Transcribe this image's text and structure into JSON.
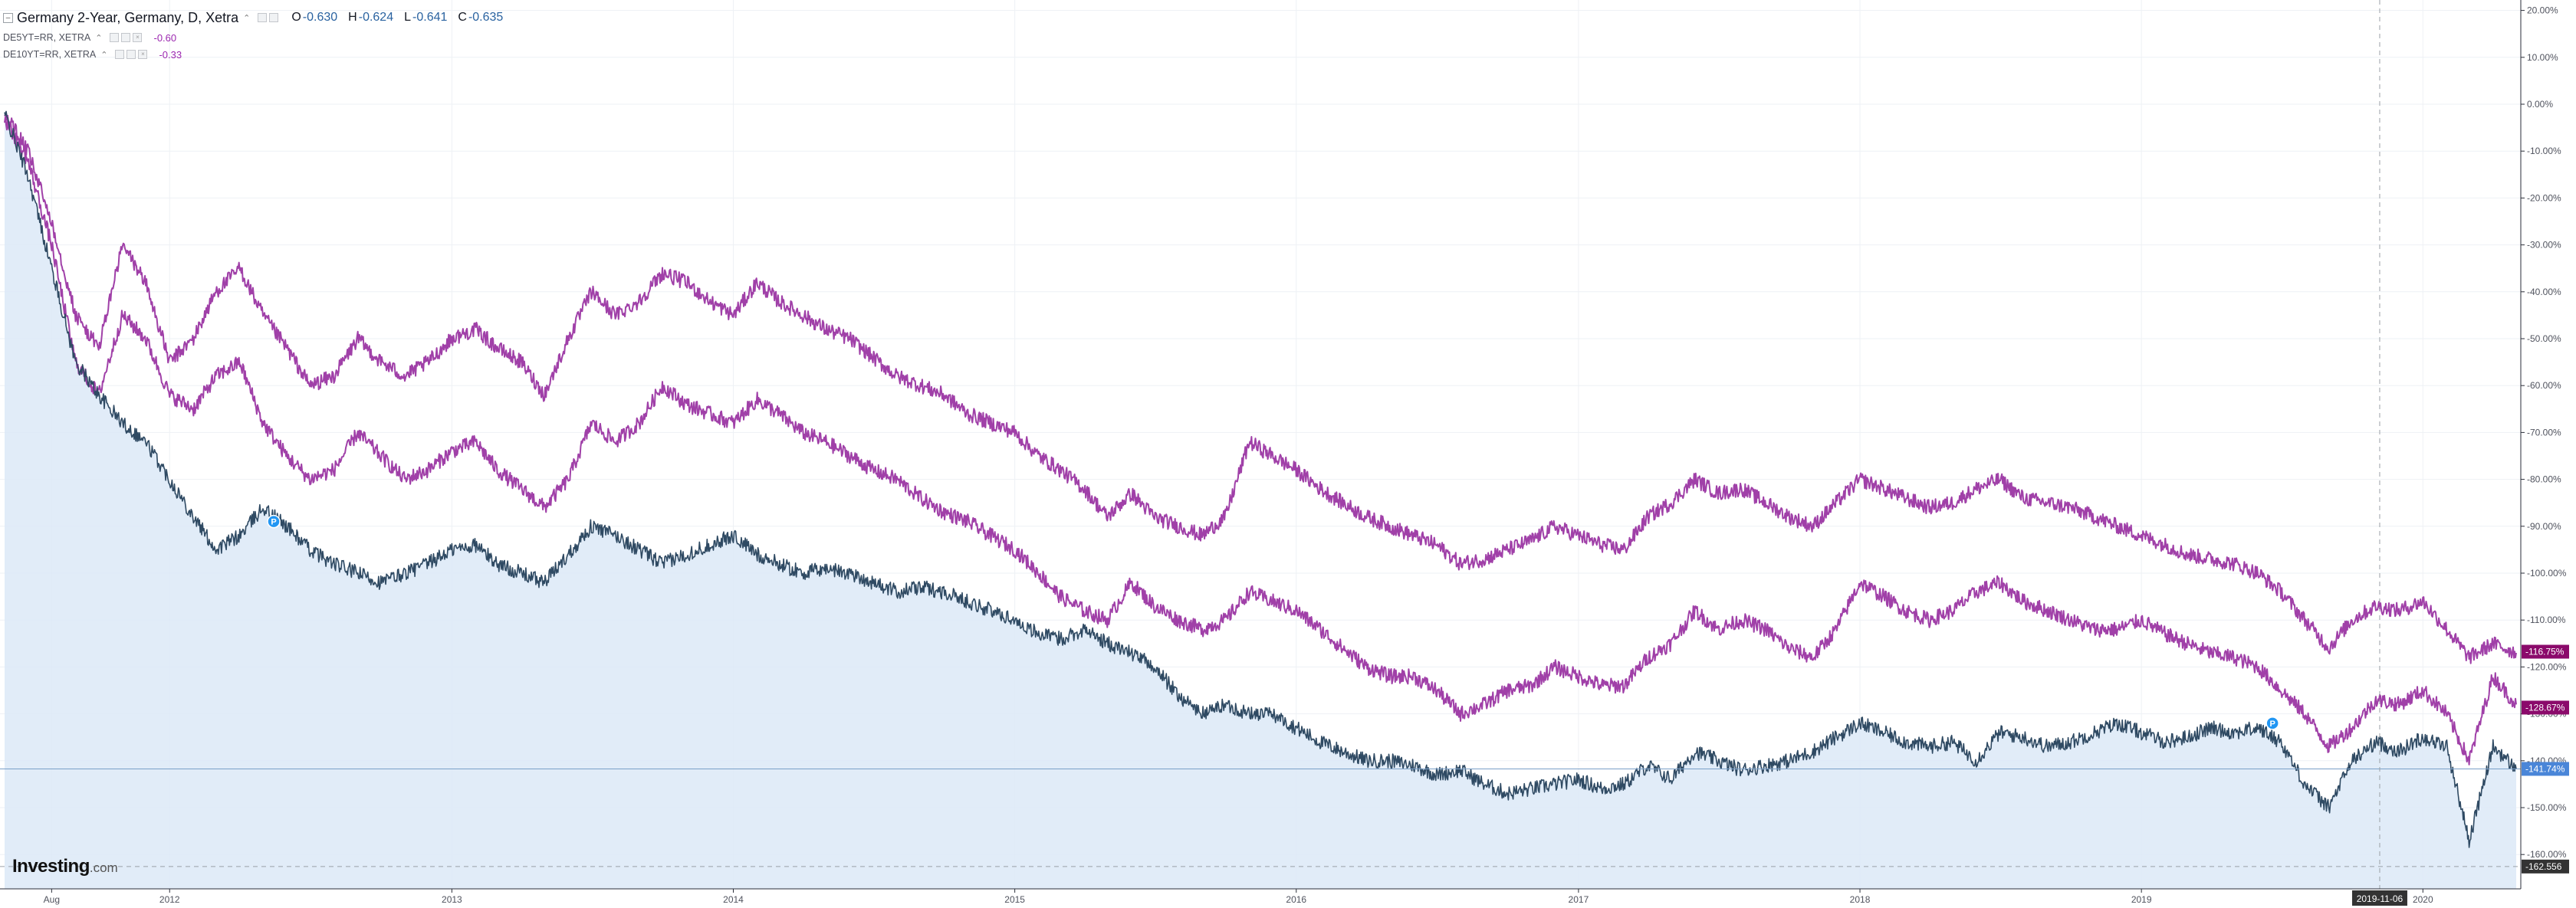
{
  "header": {
    "title": "Germany 2-Year, Germany, D, Xetra",
    "ohlc": [
      {
        "key": "O",
        "value": "-0.630"
      },
      {
        "key": "H",
        "value": "-0.624"
      },
      {
        "key": "L",
        "value": "-0.641"
      },
      {
        "key": "C",
        "value": "-0.635"
      }
    ]
  },
  "compare": [
    {
      "label": "DE5YT=RR, XETRA",
      "value": "-0.60"
    },
    {
      "label": "DE10YT=RR, XETRA",
      "value": "-0.33"
    }
  ],
  "brand": {
    "name": "Investing",
    "suffix": ".com"
  },
  "colors": {
    "main_line": "#2f4a63",
    "main_fill": "#dce9f7",
    "compare_line": "#a040a8",
    "badge_main": "#4a86d8",
    "badge_compare": "#8b0a6b",
    "badge_min": "#333333",
    "grid": "#eef1f5"
  },
  "icons": {
    "event_marker": "dividend-marker-icon"
  },
  "chart_data": {
    "type": "line",
    "y_unit": "percent change",
    "ylim": [
      -165,
      21
    ],
    "grid": true,
    "legend_placement": "top-left",
    "x_tick_labels": [
      "Aug",
      "2012",
      "2013",
      "2014",
      "2015",
      "2016",
      "2017",
      "2018",
      "2019",
      "2020"
    ],
    "x_tick_dates": [
      "2011-08-01",
      "2012-01-01",
      "2013-01-01",
      "2014-01-01",
      "2015-01-01",
      "2016-01-01",
      "2017-01-01",
      "2018-01-01",
      "2019-01-01",
      "2020-01-01"
    ],
    "y_tick_labels": [
      "20.00%",
      "10.00%",
      "0.00%",
      "-10.00%",
      "-20.00%",
      "-30.00%",
      "-40.00%",
      "-50.00%",
      "-60.00%",
      "-70.00%",
      "-80.00%",
      "-90.00%",
      "-100.00%",
      "-110.00%",
      "-120.00%",
      "-130.00%",
      "-140.00%",
      "-150.00%",
      "-160.00%"
    ],
    "y_tick_values": [
      20,
      10,
      0,
      -10,
      -20,
      -30,
      -40,
      -50,
      -60,
      -70,
      -80,
      -90,
      -100,
      -110,
      -120,
      -130,
      -140,
      -150,
      -160
    ],
    "crosshair": {
      "date_label": "2019-11-06",
      "value_label": "-162.556",
      "value": -162.556
    },
    "last_values": [
      {
        "label": "-116.75%",
        "value": -116.75
      },
      {
        "label": "-128.67%",
        "value": -128.67
      },
      {
        "label": "-141.74%",
        "value": -141.74
      }
    ],
    "markers": [
      {
        "date": "2012-05-15",
        "value": -89,
        "label": "P"
      },
      {
        "date": "2019-06-20",
        "value": -132,
        "label": "P"
      }
    ],
    "series": [
      {
        "x": [
          "2011-06-01",
          "2011-07-01",
          "2011-08-01",
          "2011-09-01",
          "2011-10-01",
          "2011-11-01",
          "2011-12-01",
          "2012-01-01",
          "2012-02-01",
          "2012-03-01",
          "2012-04-01",
          "2012-05-01",
          "2012-06-01",
          "2012-07-01",
          "2012-08-01",
          "2012-09-01",
          "2012-10-01",
          "2012-11-01",
          "2012-12-01",
          "2013-01-01",
          "2013-02-01",
          "2013-03-01",
          "2013-04-01",
          "2013-05-01",
          "2013-06-01",
          "2013-07-01",
          "2013-08-01",
          "2013-09-01",
          "2013-10-01",
          "2013-11-01",
          "2013-12-01",
          "2014-01-01",
          "2014-02-01",
          "2014-03-01",
          "2014-04-01",
          "2014-05-01",
          "2014-06-01",
          "2014-07-01",
          "2014-08-01",
          "2014-09-01",
          "2014-10-01",
          "2014-11-01",
          "2014-12-01",
          "2015-01-01",
          "2015-02-01",
          "2015-03-01",
          "2015-04-01",
          "2015-05-01",
          "2015-06-01",
          "2015-07-01",
          "2015-08-01",
          "2015-09-01",
          "2015-10-01",
          "2015-11-01",
          "2015-12-01",
          "2016-01-01",
          "2016-02-01",
          "2016-03-01",
          "2016-04-01",
          "2016-05-01",
          "2016-06-01",
          "2016-07-01",
          "2016-08-01",
          "2016-09-01",
          "2016-10-01",
          "2016-11-01",
          "2016-12-01",
          "2017-01-01",
          "2017-02-01",
          "2017-03-01",
          "2017-04-01",
          "2017-05-01",
          "2017-06-01",
          "2017-07-01",
          "2017-08-01",
          "2017-09-01",
          "2017-10-01",
          "2017-11-01",
          "2017-12-01",
          "2018-01-01",
          "2018-02-01",
          "2018-03-01",
          "2018-04-01",
          "2018-05-01",
          "2018-06-01",
          "2018-07-01",
          "2018-08-01",
          "2018-09-01",
          "2018-10-01",
          "2018-11-01",
          "2018-12-01",
          "2019-01-01",
          "2019-02-01",
          "2019-03-01",
          "2019-04-01",
          "2019-05-01",
          "2019-06-01",
          "2019-07-01",
          "2019-08-01",
          "2019-09-01",
          "2019-10-01",
          "2019-11-01",
          "2019-12-01",
          "2020-01-01",
          "2020-02-01",
          "2020-03-01",
          "2020-04-01",
          "2020-05-01"
        ],
        "y": [
          -2,
          -10,
          -25,
          -45,
          -52,
          -30,
          -38,
          -55,
          -50,
          -40,
          -35,
          -45,
          -52,
          -60,
          -58,
          -50,
          -55,
          -58,
          -55,
          -50,
          -48,
          -52,
          -55,
          -62,
          -50,
          -40,
          -45,
          -42,
          -36,
          -38,
          -42,
          -45,
          -38,
          -42,
          -45,
          -48,
          -50,
          -54,
          -58,
          -60,
          -62,
          -66,
          -68,
          -70,
          -75,
          -78,
          -82,
          -88,
          -83,
          -88,
          -90,
          -92,
          -88,
          -72,
          -75,
          -78,
          -82,
          -85,
          -88,
          -90,
          -92,
          -94,
          -98,
          -97,
          -95,
          -93,
          -90,
          -92,
          -94,
          -95,
          -88,
          -85,
          -80,
          -83,
          -82,
          -85,
          -88,
          -90,
          -85,
          -80,
          -82,
          -84,
          -86,
          -85,
          -82,
          -80,
          -84,
          -85,
          -86,
          -88,
          -90,
          -92,
          -94,
          -96,
          -97,
          -98,
          -100,
          -104,
          -110,
          -116,
          -110,
          -107,
          -108,
          -106,
          -112,
          -118,
          -115,
          -117
        ],
        "color": "#a040a8"
      },
      {
        "x": [
          "2011-06-01",
          "2011-07-01",
          "2011-08-01",
          "2011-09-01",
          "2011-10-01",
          "2011-11-01",
          "2011-12-01",
          "2012-01-01",
          "2012-02-01",
          "2012-03-01",
          "2012-04-01",
          "2012-05-01",
          "2012-06-01",
          "2012-07-01",
          "2012-08-01",
          "2012-09-01",
          "2012-10-01",
          "2012-11-01",
          "2012-12-01",
          "2013-01-01",
          "2013-02-01",
          "2013-03-01",
          "2013-04-01",
          "2013-05-01",
          "2013-06-01",
          "2013-07-01",
          "2013-08-01",
          "2013-09-01",
          "2013-10-01",
          "2013-11-01",
          "2013-12-01",
          "2014-01-01",
          "2014-02-01",
          "2014-03-01",
          "2014-04-01",
          "2014-05-01",
          "2014-06-01",
          "2014-07-01",
          "2014-08-01",
          "2014-09-01",
          "2014-10-01",
          "2014-11-01",
          "2014-12-01",
          "2015-01-01",
          "2015-02-01",
          "2015-03-01",
          "2015-04-01",
          "2015-05-01",
          "2015-06-01",
          "2015-07-01",
          "2015-08-01",
          "2015-09-01",
          "2015-10-01",
          "2015-11-01",
          "2015-12-01",
          "2016-01-01",
          "2016-02-01",
          "2016-03-01",
          "2016-04-01",
          "2016-05-01",
          "2016-06-01",
          "2016-07-01",
          "2016-08-01",
          "2016-09-01",
          "2016-10-01",
          "2016-11-01",
          "2016-12-01",
          "2017-01-01",
          "2017-02-01",
          "2017-03-01",
          "2017-04-01",
          "2017-05-01",
          "2017-06-01",
          "2017-07-01",
          "2017-08-01",
          "2017-09-01",
          "2017-10-01",
          "2017-11-01",
          "2017-12-01",
          "2018-01-01",
          "2018-02-01",
          "2018-03-01",
          "2018-04-01",
          "2018-05-01",
          "2018-06-01",
          "2018-07-01",
          "2018-08-01",
          "2018-09-01",
          "2018-10-01",
          "2018-11-01",
          "2018-12-01",
          "2019-01-01",
          "2019-02-01",
          "2019-03-01",
          "2019-04-01",
          "2019-05-01",
          "2019-06-01",
          "2019-07-01",
          "2019-08-01",
          "2019-09-01",
          "2019-10-01",
          "2019-11-01",
          "2019-12-01",
          "2020-01-01",
          "2020-02-01",
          "2020-03-01",
          "2020-04-01",
          "2020-05-01"
        ],
        "y": [
          -3,
          -12,
          -30,
          -55,
          -62,
          -45,
          -50,
          -62,
          -65,
          -58,
          -55,
          -68,
          -75,
          -80,
          -78,
          -70,
          -75,
          -80,
          -78,
          -74,
          -72,
          -78,
          -82,
          -86,
          -80,
          -68,
          -72,
          -68,
          -60,
          -64,
          -66,
          -68,
          -63,
          -66,
          -70,
          -72,
          -75,
          -78,
          -80,
          -84,
          -87,
          -89,
          -92,
          -95,
          -100,
          -105,
          -108,
          -110,
          -102,
          -107,
          -110,
          -112,
          -110,
          -104,
          -106,
          -108,
          -112,
          -116,
          -120,
          -122,
          -122,
          -125,
          -130,
          -128,
          -125,
          -124,
          -120,
          -122,
          -124,
          -124,
          -118,
          -115,
          -108,
          -112,
          -110,
          -112,
          -116,
          -118,
          -112,
          -102,
          -105,
          -108,
          -110,
          -108,
          -104,
          -102,
          -106,
          -108,
          -110,
          -112,
          -112,
          -110,
          -113,
          -115,
          -117,
          -118,
          -120,
          -125,
          -130,
          -137,
          -133,
          -127,
          -128,
          -125,
          -130,
          -140,
          -122,
          -128
        ],
        "color": "#a040a8"
      },
      {
        "x": [
          "2011-06-01",
          "2011-07-01",
          "2011-08-01",
          "2011-09-01",
          "2011-10-01",
          "2011-11-01",
          "2011-12-01",
          "2012-01-01",
          "2012-02-01",
          "2012-03-01",
          "2012-04-01",
          "2012-05-01",
          "2012-06-01",
          "2012-07-01",
          "2012-08-01",
          "2012-09-01",
          "2012-10-01",
          "2012-11-01",
          "2012-12-01",
          "2013-01-01",
          "2013-02-01",
          "2013-03-01",
          "2013-04-01",
          "2013-05-01",
          "2013-06-01",
          "2013-07-01",
          "2013-08-01",
          "2013-09-01",
          "2013-10-01",
          "2013-11-01",
          "2013-12-01",
          "2014-01-01",
          "2014-02-01",
          "2014-03-01",
          "2014-04-01",
          "2014-05-01",
          "2014-06-01",
          "2014-07-01",
          "2014-08-01",
          "2014-09-01",
          "2014-10-01",
          "2014-11-01",
          "2014-12-01",
          "2015-01-01",
          "2015-02-01",
          "2015-03-01",
          "2015-04-01",
          "2015-05-01",
          "2015-06-01",
          "2015-07-01",
          "2015-08-01",
          "2015-09-01",
          "2015-10-01",
          "2015-11-01",
          "2015-12-01",
          "2016-01-01",
          "2016-02-01",
          "2016-03-01",
          "2016-04-01",
          "2016-05-01",
          "2016-06-01",
          "2016-07-01",
          "2016-08-01",
          "2016-09-01",
          "2016-10-01",
          "2016-11-01",
          "2016-12-01",
          "2017-01-01",
          "2017-02-01",
          "2017-03-01",
          "2017-04-01",
          "2017-05-01",
          "2017-06-01",
          "2017-07-01",
          "2017-08-01",
          "2017-09-01",
          "2017-10-01",
          "2017-11-01",
          "2017-12-01",
          "2018-01-01",
          "2018-02-01",
          "2018-03-01",
          "2018-04-01",
          "2018-05-01",
          "2018-06-01",
          "2018-07-01",
          "2018-08-01",
          "2018-09-01",
          "2018-10-01",
          "2018-11-01",
          "2018-12-01",
          "2019-01-01",
          "2019-02-01",
          "2019-03-01",
          "2019-04-01",
          "2019-05-01",
          "2019-06-01",
          "2019-07-01",
          "2019-08-01",
          "2019-09-01",
          "2019-10-01",
          "2019-11-01",
          "2019-12-01",
          "2020-01-01",
          "2020-02-01",
          "2020-03-01",
          "2020-04-01",
          "2020-05-01"
        ],
        "y": [
          -2,
          -15,
          -35,
          -55,
          -62,
          -68,
          -72,
          -80,
          -88,
          -95,
          -92,
          -86,
          -90,
          -95,
          -98,
          -100,
          -102,
          -100,
          -98,
          -95,
          -94,
          -98,
          -100,
          -102,
          -96,
          -90,
          -92,
          -95,
          -98,
          -96,
          -94,
          -92,
          -96,
          -98,
          -100,
          -99,
          -100,
          -102,
          -104,
          -103,
          -104,
          -106,
          -108,
          -110,
          -113,
          -114,
          -112,
          -115,
          -117,
          -120,
          -126,
          -130,
          -128,
          -130,
          -130,
          -133,
          -136,
          -138,
          -140,
          -140,
          -141,
          -143,
          -142,
          -145,
          -147,
          -146,
          -145,
          -144,
          -146,
          -145,
          -141,
          -144,
          -138,
          -140,
          -142,
          -141,
          -140,
          -138,
          -135,
          -132,
          -134,
          -136,
          -137,
          -136,
          -140,
          -134,
          -135,
          -137,
          -136,
          -134,
          -132,
          -134,
          -136,
          -135,
          -133,
          -134,
          -133,
          -136,
          -145,
          -150,
          -140,
          -136,
          -138,
          -135,
          -137,
          -157,
          -137,
          -141.74
        ],
        "color": "#2f4a63"
      }
    ]
  }
}
